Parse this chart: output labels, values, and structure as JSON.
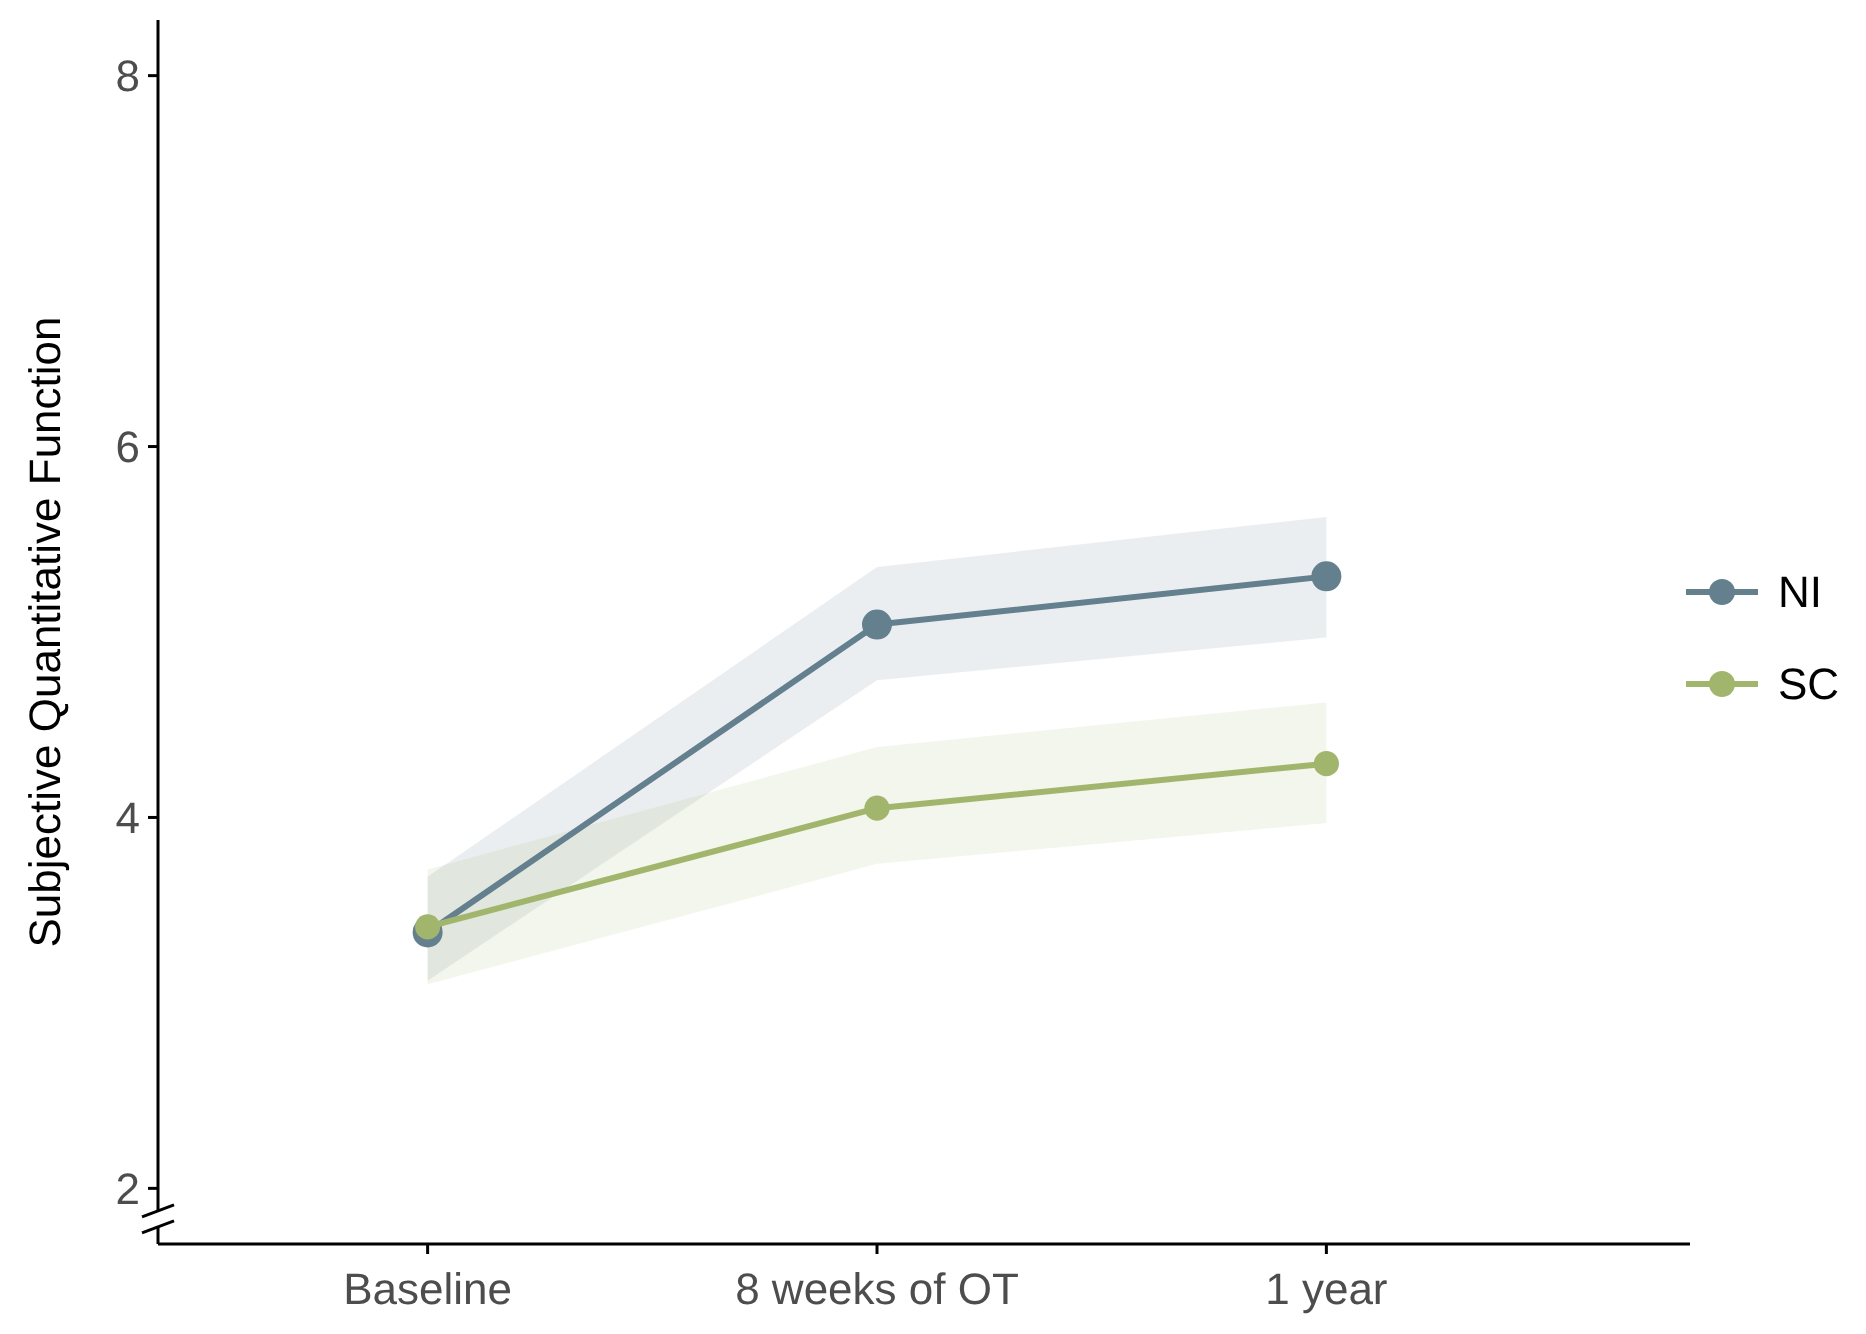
{
  "chart_data": {
    "type": "line",
    "ylabel": "Subjective Quantitative Function",
    "categories": [
      "Baseline",
      "8 weeks of OT",
      "1 year"
    ],
    "ylim": [
      1.7,
      8.3
    ],
    "yticks": [
      2,
      4,
      6,
      8
    ],
    "grid": false,
    "legend": "right",
    "marker": "circle",
    "line_style": "solid",
    "series": [
      {
        "name": "NI",
        "color": "#647f8e",
        "values": [
          3.38,
          5.04,
          5.3
        ],
        "lower": [
          3.12,
          4.74,
          4.97
        ],
        "upper": [
          3.68,
          5.35,
          5.62
        ]
      },
      {
        "name": "SC",
        "color": "#a1b66c",
        "values": [
          3.41,
          4.05,
          4.29
        ],
        "lower": [
          3.1,
          3.75,
          3.97
        ],
        "upper": [
          3.72,
          4.38,
          4.62
        ]
      }
    ]
  }
}
